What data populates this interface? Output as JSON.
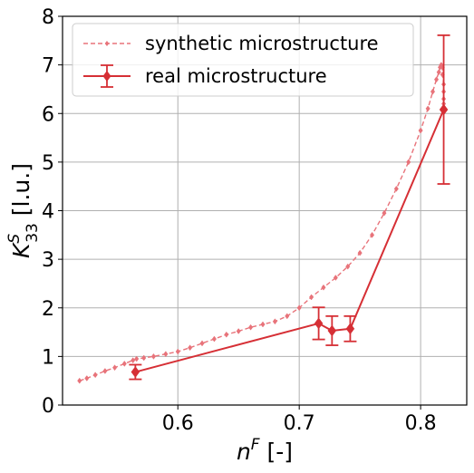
{
  "chart_data": {
    "type": "line",
    "xlabel": "n^F [-]",
    "xlabel_base": "n",
    "xlabel_sup": "F",
    "xlabel_rest": " [-]",
    "ylabel": "K^S_33 [l.u.]",
    "ylabel_base": "K",
    "ylabel_sup": "S",
    "ylabel_sub": "33",
    "ylabel_rest": " [l.u.]",
    "xlim": [
      0.505,
      0.838
    ],
    "ylim": [
      0,
      8
    ],
    "xticks": [
      0.6,
      0.7,
      0.8
    ],
    "xtick_labels": [
      "0.6",
      "0.7",
      "0.8"
    ],
    "yticks": [
      0,
      1,
      2,
      3,
      4,
      5,
      6,
      7,
      8
    ],
    "ytick_labels": [
      "0",
      "1",
      "2",
      "3",
      "4",
      "5",
      "6",
      "7",
      "8"
    ],
    "grid": true,
    "legend_position": "top-left",
    "colors": {
      "synthetic": "#e8737a",
      "real": "#d62f35"
    },
    "series": [
      {
        "name": "synthetic microstructure",
        "style": "dashed-line-with-small-diamond-markers",
        "x": [
          0.519,
          0.525,
          0.532,
          0.54,
          0.548,
          0.556,
          0.563,
          0.566,
          0.572,
          0.58,
          0.59,
          0.6,
          0.61,
          0.62,
          0.63,
          0.64,
          0.65,
          0.66,
          0.67,
          0.68,
          0.69,
          0.7,
          0.71,
          0.72,
          0.73,
          0.74,
          0.75,
          0.76,
          0.77,
          0.78,
          0.79,
          0.8,
          0.806,
          0.81,
          0.813,
          0.815,
          0.816,
          0.817,
          0.818,
          0.818,
          0.819,
          0.819,
          0.819,
          0.819
        ],
        "y": [
          0.5,
          0.55,
          0.62,
          0.7,
          0.77,
          0.85,
          0.92,
          0.95,
          0.97,
          1.0,
          1.05,
          1.1,
          1.18,
          1.27,
          1.36,
          1.45,
          1.52,
          1.6,
          1.66,
          1.72,
          1.83,
          2.0,
          2.22,
          2.42,
          2.62,
          2.85,
          3.13,
          3.5,
          3.95,
          4.45,
          5.0,
          5.65,
          6.1,
          6.45,
          6.7,
          6.85,
          6.95,
          7.0,
          6.95,
          6.8,
          6.6,
          6.45,
          6.3,
          6.2
        ]
      },
      {
        "name": "real microstructure",
        "style": "solid-line-with-diamond-markers-and-error-bars",
        "x": [
          0.565,
          0.716,
          0.727,
          0.742,
          0.819
        ],
        "y": [
          0.68,
          1.68,
          1.53,
          1.57,
          6.08
        ],
        "yerr": [
          0.15,
          0.33,
          0.3,
          0.26,
          1.53
        ]
      }
    ]
  }
}
